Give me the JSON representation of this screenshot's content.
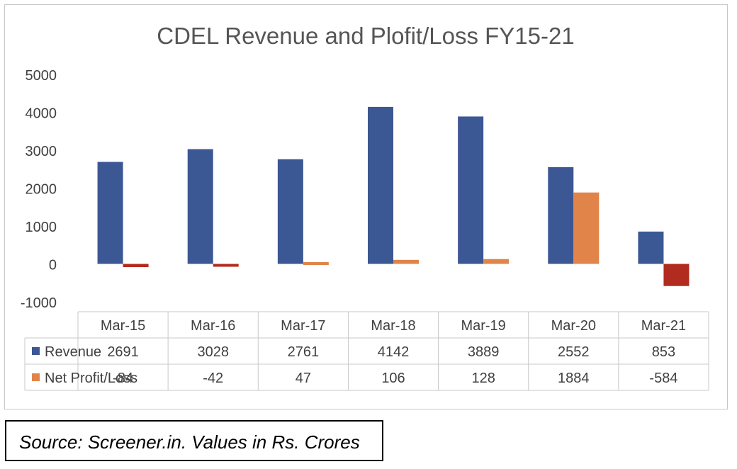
{
  "chart_data": {
    "type": "bar",
    "title": "CDEL Revenue and Plofit/Loss FY15-21",
    "categories": [
      "Mar-15",
      "Mar-16",
      "Mar-17",
      "Mar-18",
      "Mar-19",
      "Mar-20",
      "Mar-21"
    ],
    "series": [
      {
        "name": "Revenue",
        "values": [
          2691,
          3028,
          2761,
          4142,
          3889,
          2552,
          853
        ],
        "color": "#3b5794"
      },
      {
        "name": "Net Profit/Loss",
        "values": [
          -84,
          -42,
          47,
          106,
          128,
          1884,
          -584
        ],
        "color": "#e0844a",
        "negative_color": "#b22b1f"
      }
    ],
    "ylim": [
      -1000,
      5000
    ],
    "yticks": [
      5000,
      4000,
      3000,
      2000,
      1000,
      0,
      -1000
    ],
    "xlabel": "",
    "ylabel": "",
    "data_table": true,
    "grid": false
  },
  "source": "Source: Screener.in.  Values in Rs. Crores",
  "colors": {
    "text": "#404040",
    "table_border": "#c8c8c8"
  }
}
